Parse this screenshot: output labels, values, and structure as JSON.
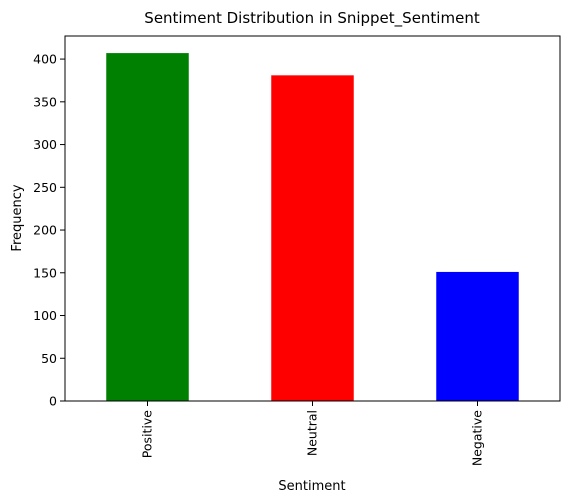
{
  "chart_data": {
    "type": "bar",
    "title": "Sentiment Distribution in Snippet_Sentiment",
    "xlabel": "Sentiment",
    "ylabel": "Frequency",
    "categories": [
      "Positive",
      "Neutral",
      "Negative"
    ],
    "values": [
      407,
      381,
      151
    ],
    "colors": [
      "#008000",
      "#ff0000",
      "#0000ff"
    ],
    "ylim": [
      0,
      427
    ],
    "yticks": [
      0,
      50,
      100,
      150,
      200,
      250,
      300,
      350,
      400
    ],
    "grid": false,
    "legend": "none"
  }
}
